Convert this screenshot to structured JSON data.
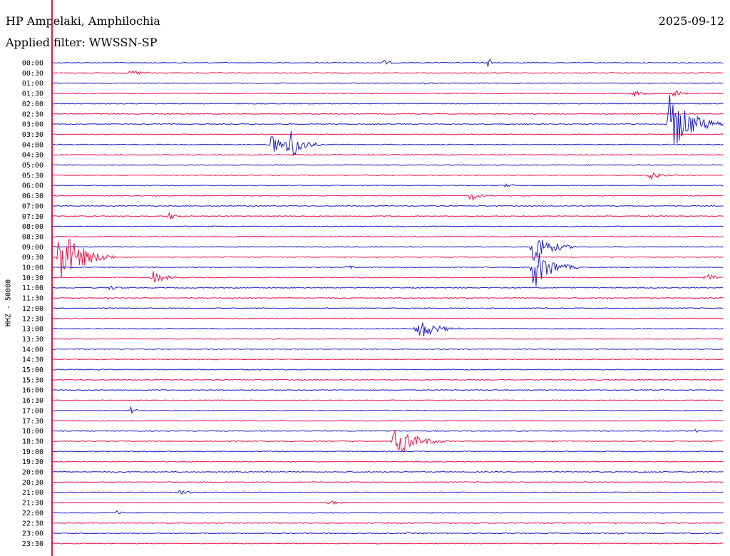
{
  "header": {
    "station": "HP Ampelaki, Amphilochia",
    "filter": "Applied filter: WWSSN-SP",
    "date": "2025-09-12"
  },
  "channel_label": "HHZ - 50000",
  "colors": {
    "even": "#1a1acc",
    "odd": "#ee1144",
    "baseline": "#000000"
  },
  "chart_data": {
    "type": "helicorder",
    "title": "HP Ampelaki, Amphilochia",
    "subtitle": "Applied filter: WWSSN-SP",
    "ylabel": "HHZ - 50000",
    "row_labels": [
      "00:00",
      "00:30",
      "01:00",
      "01:30",
      "02:00",
      "02:30",
      "03:00",
      "03:30",
      "04:00",
      "04:30",
      "05:00",
      "05:30",
      "06:00",
      "06:30",
      "07:00",
      "07:30",
      "08:00",
      "08:30",
      "09:00",
      "09:30",
      "10:00",
      "10:30",
      "11:00",
      "11:30",
      "12:00",
      "12:30",
      "13:00",
      "13:30",
      "14:00",
      "14:30",
      "15:00",
      "15:30",
      "16:00",
      "16:30",
      "17:00",
      "17:30",
      "18:00",
      "18:30",
      "19:00",
      "19:30",
      "20:00",
      "20:30",
      "21:00",
      "21:30",
      "22:00",
      "22:30",
      "23:00",
      "23:30"
    ],
    "minutes_per_row": 30,
    "events": [
      {
        "row": 0,
        "minute": 19.5,
        "amplitude": 1.0,
        "duration": 0.6
      },
      {
        "row": 0,
        "minute": 14.8,
        "amplitude": 0.5,
        "duration": 1.0
      },
      {
        "row": 1,
        "minute": 3.5,
        "amplitude": 0.5,
        "duration": 2
      },
      {
        "row": 2,
        "minute": 16.5,
        "amplitude": 0.3,
        "duration": 1.5
      },
      {
        "row": 3,
        "minute": 26,
        "amplitude": 0.5,
        "duration": 1.5
      },
      {
        "row": 3,
        "minute": 27.8,
        "amplitude": 0.7,
        "duration": 1
      },
      {
        "row": 6,
        "minute": 27.6,
        "amplitude": 5.5,
        "duration": 2.5
      },
      {
        "row": 8,
        "minute": 9.8,
        "amplitude": 2.0,
        "duration": 1.0
      },
      {
        "row": 8,
        "minute": 10.5,
        "amplitude": 3.8,
        "duration": 1.5
      },
      {
        "row": 11,
        "minute": 26.7,
        "amplitude": 0.9,
        "duration": 1.2
      },
      {
        "row": 12,
        "minute": 20.3,
        "amplitude": 0.5,
        "duration": 1.0
      },
      {
        "row": 13,
        "minute": 18.7,
        "amplitude": 1.0,
        "duration": 1.0
      },
      {
        "row": 15,
        "minute": 5.2,
        "amplitude": 0.7,
        "duration": 1.2
      },
      {
        "row": 18,
        "minute": 21.5,
        "amplitude": 3.0,
        "duration": 2.0
      },
      {
        "row": 18,
        "minute": 22.3,
        "amplitude": 0.6,
        "duration": 1.0
      },
      {
        "row": 19,
        "minute": 0.3,
        "amplitude": 5.5,
        "duration": 2.5
      },
      {
        "row": 20,
        "minute": 13.2,
        "amplitude": 0.4,
        "duration": 1.0
      },
      {
        "row": 20,
        "minute": 21.5,
        "amplitude": 4.0,
        "duration": 2.0
      },
      {
        "row": 21,
        "minute": 4.5,
        "amplitude": 1.2,
        "duration": 1.5
      },
      {
        "row": 21,
        "minute": 29.2,
        "amplitude": 0.8,
        "duration": 1.5
      },
      {
        "row": 22,
        "minute": 2.6,
        "amplitude": 0.5,
        "duration": 1.0
      },
      {
        "row": 26,
        "minute": 16.3,
        "amplitude": 2.2,
        "duration": 2.0
      },
      {
        "row": 34,
        "minute": 3.5,
        "amplitude": 0.8,
        "duration": 0.5
      },
      {
        "row": 36,
        "minute": 28.7,
        "amplitude": 0.4,
        "duration": 1.0
      },
      {
        "row": 37,
        "minute": 15.3,
        "amplitude": 2.7,
        "duration": 2.5
      },
      {
        "row": 40,
        "minute": 26.3,
        "amplitude": 0.3,
        "duration": 1.0
      },
      {
        "row": 42,
        "minute": 5.7,
        "amplitude": 0.5,
        "duration": 1.5
      },
      {
        "row": 43,
        "minute": 12.4,
        "amplitude": 0.6,
        "duration": 1.0
      },
      {
        "row": 44,
        "minute": 2.9,
        "amplitude": 0.5,
        "duration": 0.6
      },
      {
        "row": 46,
        "minute": 25.3,
        "amplitude": 0.3,
        "duration": 1.0
      }
    ]
  }
}
